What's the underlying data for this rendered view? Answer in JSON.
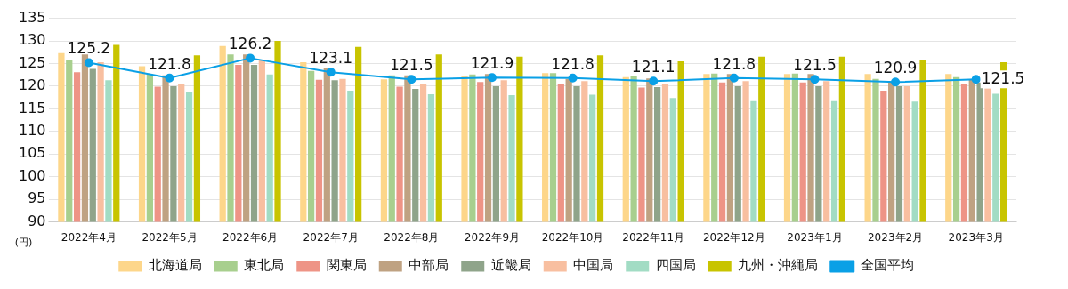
{
  "chart_data": {
    "type": "bar",
    "ylabel": "(円)",
    "categories": [
      "2022年4月",
      "2022年5月",
      "2022年6月",
      "2022年7月",
      "2022年8月",
      "2022年9月",
      "2022年10月",
      "2022年11月",
      "2022年12月",
      "2023年1月",
      "2023年2月",
      "2023年3月"
    ],
    "ylim": [
      90,
      135
    ],
    "yticks": [
      90,
      95,
      100,
      105,
      110,
      115,
      120,
      125,
      130,
      135
    ],
    "grid": "y",
    "legend": "bottom",
    "series": [
      {
        "name": "北海道局",
        "color": "#fdd68a",
        "values": [
          127.3,
          124.4,
          128.9,
          125.3,
          121.5,
          122.3,
          122.9,
          122.0,
          122.7,
          122.7,
          122.7,
          122.7
        ]
      },
      {
        "name": "東北局",
        "color": "#a8cf8e",
        "values": [
          125.9,
          122.7,
          127.0,
          123.4,
          122.4,
          122.6,
          122.9,
          122.2,
          122.8,
          122.8,
          121.6,
          122.0
        ]
      },
      {
        "name": "関東局",
        "color": "#ee9486",
        "values": [
          123.1,
          119.9,
          124.7,
          121.4,
          119.9,
          120.9,
          120.5,
          119.7,
          120.8,
          120.8,
          119.0,
          120.4
        ]
      },
      {
        "name": "中部局",
        "color": "#bfa282",
        "values": [
          127.0,
          122.4,
          127.0,
          124.0,
          122.4,
          122.7,
          121.6,
          121.7,
          122.7,
          122.7,
          120.9,
          121.4
        ]
      },
      {
        "name": "近畿局",
        "color": "#8fa48a",
        "values": [
          123.8,
          120.0,
          124.7,
          121.3,
          119.4,
          120.0,
          120.0,
          119.8,
          120.0,
          120.0,
          120.0,
          120.8
        ]
      },
      {
        "name": "中国局",
        "color": "#f8bfa0",
        "values": [
          125.3,
          120.5,
          125.7,
          121.6,
          120.5,
          121.3,
          121.1,
          120.4,
          121.1,
          121.1,
          120.0,
          119.5
        ]
      },
      {
        "name": "四国局",
        "color": "#a2dcc4",
        "values": [
          121.3,
          118.7,
          122.6,
          119.0,
          118.2,
          118.0,
          118.1,
          117.4,
          116.7,
          116.7,
          116.6,
          118.3
        ]
      },
      {
        "name": "九州・沖縄局",
        "color": "#c8c400",
        "values": [
          129.1,
          126.8,
          130.0,
          128.7,
          127.0,
          126.5,
          126.8,
          125.5,
          126.5,
          126.5,
          125.7,
          125.3
        ]
      },
      {
        "name": "全国平均",
        "type": "line",
        "color": "#0aa0e6",
        "marker": "circle",
        "values": [
          125.2,
          121.8,
          126.2,
          123.1,
          121.5,
          121.9,
          121.8,
          121.1,
          121.8,
          121.5,
          120.9,
          121.5
        ],
        "value_labels": [
          "125.2",
          "121.8",
          "126.2",
          "123.1",
          "121.5",
          "121.9",
          "121.8",
          "121.1",
          "121.8",
          "121.5",
          "120.9",
          "121.5"
        ]
      }
    ]
  }
}
